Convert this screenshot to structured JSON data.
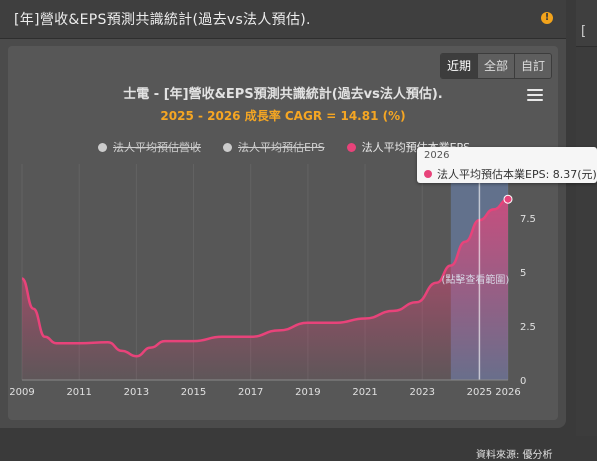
{
  "panel": {
    "title": "[年]營收&EPS預測共識統計(過去vs法人預估)."
  },
  "info_badge": "!",
  "right_strip": {
    "text": "["
  },
  "range_buttons": [
    {
      "label": "近期",
      "active": true
    },
    {
      "label": "全部",
      "active": false
    },
    {
      "label": "自訂",
      "active": false
    }
  ],
  "chart_data": {
    "type": "area",
    "title": "士電 - [年]營收&EPS預測共識統計(過去vs法人預估).",
    "subtitle": "2025 - 2026 成長率 CAGR = 14.81 (%)",
    "legend": [
      {
        "name": "法人平均預估營收",
        "color": "#cccccc",
        "visible": false
      },
      {
        "name": "法人平均預估EPS",
        "color": "#cccccc",
        "visible": false
      },
      {
        "name": "法人平均預估本業EPS",
        "color": "#e8437a",
        "visible": true
      }
    ],
    "x_ticks": [
      "2009",
      "2011",
      "2013",
      "2015",
      "2017",
      "2019",
      "2021",
      "2023",
      "2025",
      "2026"
    ],
    "y_ticks": [
      "0",
      "2.5",
      "5",
      "7.5"
    ],
    "xlim": [
      2009,
      2026
    ],
    "ylim": [
      0,
      10
    ],
    "series": [
      {
        "name": "法人平均預估本業EPS",
        "color": "#e8437a",
        "points": [
          [
            2009.0,
            4.7
          ],
          [
            2009.4,
            3.3
          ],
          [
            2009.8,
            2.0
          ],
          [
            2010.2,
            1.7
          ],
          [
            2011.0,
            1.7
          ],
          [
            2012.0,
            1.75
          ],
          [
            2012.5,
            1.35
          ],
          [
            2013.0,
            1.1
          ],
          [
            2013.5,
            1.5
          ],
          [
            2014.0,
            1.8
          ],
          [
            2015.0,
            1.8
          ],
          [
            2016.0,
            2.0
          ],
          [
            2017.0,
            2.0
          ],
          [
            2018.0,
            2.3
          ],
          [
            2019.0,
            2.65
          ],
          [
            2020.0,
            2.65
          ],
          [
            2021.0,
            2.85
          ],
          [
            2022.0,
            3.2
          ],
          [
            2022.8,
            3.6
          ],
          [
            2023.5,
            4.5
          ],
          [
            2024.0,
            5.3
          ],
          [
            2024.5,
            6.4
          ],
          [
            2025.0,
            7.4
          ],
          [
            2025.5,
            7.9
          ],
          [
            2026.0,
            8.37
          ]
        ]
      }
    ],
    "highlight_band": {
      "from": 2024.0,
      "to": 2026.0,
      "label": "(點擊查看範圍)"
    },
    "crosshair_x": 2025.0
  },
  "tooltip": {
    "date": "2026",
    "label": "法人平均預估本業EPS: 8.37(元)",
    "color": "#e8437a"
  },
  "source": "資料來源: 優分析"
}
